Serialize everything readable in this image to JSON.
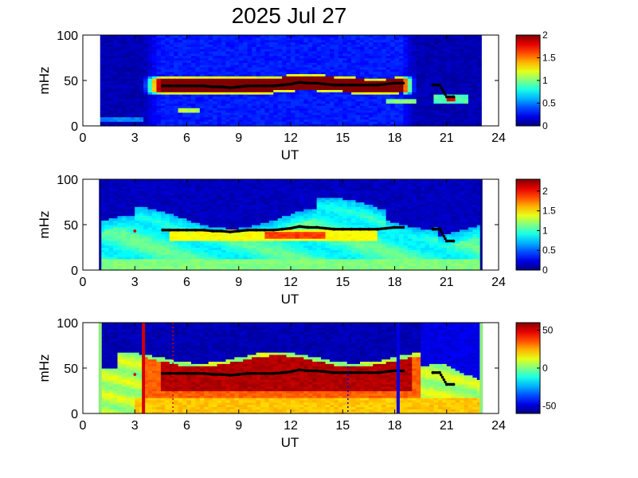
{
  "title": "2025 Jul 27",
  "colors": {
    "background": "#ffffff",
    "axis": "#000000",
    "dots": "#000000",
    "event_red": "#d40000",
    "event_blue": "#0000e6",
    "edge_green": "#90ee80"
  },
  "chart_data": [
    {
      "type": "heatmap",
      "xlabel": "UT",
      "ylabel": "mHz",
      "xlim": [
        0,
        24
      ],
      "ylim": [
        0,
        100
      ],
      "xticks": [
        "0",
        "3",
        "6",
        "9",
        "12",
        "15",
        "18",
        "21",
        "24"
      ],
      "yticks": [
        "0",
        "50",
        "100"
      ],
      "data_range_ut": [
        1,
        23
      ],
      "colormap": "jet",
      "colorbar": {
        "range": [
          0,
          2
        ],
        "ticks": [
          "0",
          "0.5",
          "1",
          "1.5",
          "2"
        ]
      },
      "features": [
        {
          "x_start": 3.5,
          "x_end": 18.5,
          "freq_center": 45,
          "half_width": 7,
          "level": "saturated"
        },
        {
          "x_start": 5.5,
          "x_end": 6.8,
          "freq_center": 17,
          "half_width": 3,
          "level": "medium"
        },
        {
          "x_start": 17.5,
          "x_end": 19.3,
          "freq_center": 28,
          "half_width": 3,
          "level": "medium"
        },
        {
          "x_start": 20.3,
          "x_end": 22.2,
          "freq_center": 30,
          "half_width": 4,
          "level": "medium"
        }
      ]
    },
    {
      "type": "heatmap",
      "xlabel": "UT",
      "ylabel": "mHz",
      "xlim": [
        0,
        24
      ],
      "ylim": [
        0,
        100
      ],
      "xticks": [
        "0",
        "3",
        "6",
        "9",
        "12",
        "15",
        "18",
        "21",
        "24"
      ],
      "yticks": [
        "0",
        "50",
        "100"
      ],
      "data_range_ut": [
        1,
        23
      ],
      "colormap": "jet",
      "colorbar": {
        "range": [
          0,
          2.3
        ],
        "ticks": [
          "0",
          "0.5",
          "1",
          "1.5",
          "2"
        ]
      },
      "features": [
        {
          "x_start": 8,
          "x_end": 15,
          "freq_center": 38,
          "half_width": 6,
          "level": "high"
        },
        {
          "x_start": 1,
          "x_end": 23,
          "freq_center": 30,
          "half_width": 25,
          "level": "medium"
        }
      ]
    },
    {
      "type": "heatmap",
      "xlabel": "UT",
      "ylabel": "mHz",
      "xlim": [
        0,
        24
      ],
      "ylim": [
        0,
        100
      ],
      "xticks": [
        "0",
        "3",
        "6",
        "9",
        "12",
        "15",
        "18",
        "21",
        "24"
      ],
      "yticks": [
        "0",
        "50",
        "100"
      ],
      "data_range_ut": [
        1,
        23
      ],
      "colormap": "jet",
      "colorbar": {
        "range": [
          -60,
          60
        ],
        "ticks": [
          "-50",
          "0",
          "50"
        ]
      },
      "features": [
        {
          "x_start": 4.5,
          "x_end": 19.5,
          "freq_center": 42,
          "half_width": 14,
          "level": "saturated"
        }
      ],
      "markers": [
        {
          "ut": 3.5,
          "color": "red",
          "style": "solid"
        },
        {
          "ut": 5.2,
          "color": "red",
          "style": "dotted"
        },
        {
          "ut": 15.3,
          "color": "blue",
          "style": "dotted"
        },
        {
          "ut": 18.2,
          "color": "blue",
          "style": "solid"
        }
      ]
    }
  ],
  "peak_frequency_track": [
    [
      3.0,
      43
    ],
    [
      4.6,
      44
    ],
    [
      5.0,
      44
    ],
    [
      5.5,
      44
    ],
    [
      6.0,
      44
    ],
    [
      6.5,
      44
    ],
    [
      7.0,
      44
    ],
    [
      7.5,
      43
    ],
    [
      8.0,
      43
    ],
    [
      8.5,
      42
    ],
    [
      9.0,
      43
    ],
    [
      9.5,
      44
    ],
    [
      10.0,
      44
    ],
    [
      10.5,
      44
    ],
    [
      11.0,
      44
    ],
    [
      11.5,
      45
    ],
    [
      12.0,
      46
    ],
    [
      12.5,
      48
    ],
    [
      13.0,
      47
    ],
    [
      13.5,
      47
    ],
    [
      14.0,
      46
    ],
    [
      14.5,
      45
    ],
    [
      15.0,
      45
    ],
    [
      15.5,
      45
    ],
    [
      16.0,
      45
    ],
    [
      16.5,
      45
    ],
    [
      17.0,
      45
    ],
    [
      17.5,
      46
    ],
    [
      18.0,
      47
    ],
    [
      18.5,
      47
    ],
    [
      20.2,
      45
    ],
    [
      20.6,
      45
    ],
    [
      21.0,
      32
    ],
    [
      21.4,
      32
    ]
  ]
}
